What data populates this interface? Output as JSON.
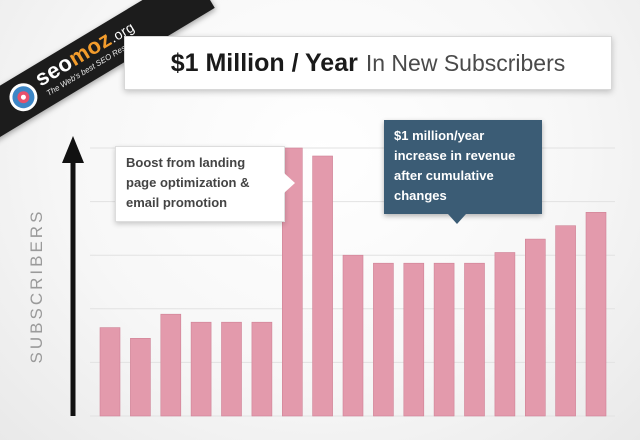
{
  "logo": {
    "brand_primary": "seo",
    "brand_accent": "moz",
    "brand_suffix": ".org",
    "tagline": "The Web's best SEO Resource",
    "accent_color": "#f39c2c"
  },
  "chart_data": {
    "type": "bar",
    "title_bold": "$1 Million / Year",
    "title_rest": "In New Subscribers",
    "ylabel": "SUBSCRIBERS",
    "xlabel": "",
    "ylim": [
      0,
      100
    ],
    "values": [
      33,
      29,
      38,
      35,
      35,
      35,
      100,
      97,
      60,
      57,
      57,
      57,
      57,
      61,
      66,
      71,
      76
    ],
    "bar_color": "#e39aac",
    "grid": true,
    "annotations": [
      {
        "text": "Boost from landing page optimization & email promotion",
        "lines": [
          "Boost from landing",
          "page optimization &",
          "email promotion"
        ]
      },
      {
        "text": "$1 million/year increase in revenue after cumulative changes",
        "lines": [
          "$1 million/year",
          "increase in revenue",
          "after cumulative",
          "changes"
        ]
      }
    ]
  }
}
